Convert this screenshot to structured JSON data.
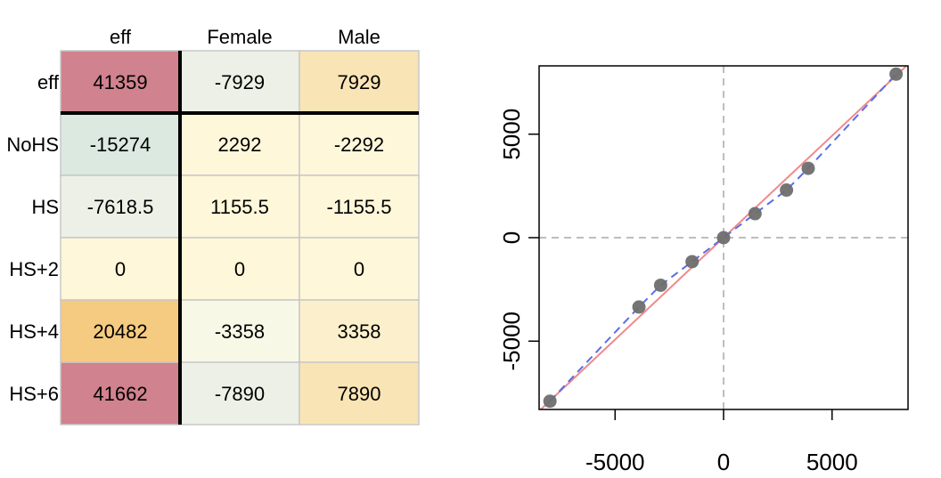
{
  "chart_data": [
    {
      "type": "table",
      "title": "",
      "columns": [
        "eff",
        "Female",
        "Male"
      ],
      "rows": [
        {
          "label": "eff",
          "values": [
            "41359",
            "-7929",
            "7929"
          ],
          "colors": [
            "#d0828e",
            "#edf0e6",
            "#f9e4b5"
          ]
        },
        {
          "label": "NoHS",
          "values": [
            "-15274",
            "2292",
            "-2292"
          ],
          "colors": [
            "#dbe9e0",
            "#fff7d9",
            "#fff7d9"
          ]
        },
        {
          "label": "HS",
          "values": [
            "-7618.5",
            "1155.5",
            "-1155.5"
          ],
          "colors": [
            "#edf0e6",
            "#fff7d9",
            "#fff7d9"
          ]
        },
        {
          "label": "HS+2",
          "values": [
            "0",
            "0",
            "0"
          ],
          "colors": [
            "#fff7d9",
            "#fff7d9",
            "#fff7d9"
          ]
        },
        {
          "label": "HS+4",
          "values": [
            "20482",
            "-3358",
            "3358"
          ],
          "colors": [
            "#f4cb80",
            "#f7f8e6",
            "#fcefcb"
          ]
        },
        {
          "label": "HS+6",
          "values": [
            "41662",
            "-7890",
            "7890"
          ],
          "colors": [
            "#d0828e",
            "#edf0e6",
            "#f9e4b5"
          ]
        }
      ],
      "thick_separators": "after first row and first column"
    },
    {
      "type": "scatter",
      "title": "",
      "xlabel": "",
      "ylabel": "",
      "xlim": [
        -8500,
        8500
      ],
      "ylim": [
        -8300,
        8300
      ],
      "xticks": [
        -5000,
        0,
        5000
      ],
      "yticks": [
        -5000,
        0,
        5000
      ],
      "grid": false,
      "reference_lines": {
        "x": 0,
        "y": 0,
        "style": "dashed",
        "color": "#bebebe"
      },
      "points": [
        {
          "x": -8000,
          "y": -7900
        },
        {
          "x": -3900,
          "y": -3350
        },
        {
          "x": -2900,
          "y": -2300
        },
        {
          "x": -1450,
          "y": -1160
        },
        {
          "x": 0,
          "y": 0
        },
        {
          "x": 1450,
          "y": 1160
        },
        {
          "x": 2900,
          "y": 2300
        },
        {
          "x": 3900,
          "y": 3350
        },
        {
          "x": 7950,
          "y": 7900
        }
      ],
      "point_color": "#6e6e6e",
      "fit_line": {
        "slope": 0.985,
        "intercept": 0,
        "color": "#f08a8a",
        "style": "solid"
      },
      "smooth_line": {
        "color": "#5a6ee6",
        "style": "dashed"
      }
    }
  ]
}
